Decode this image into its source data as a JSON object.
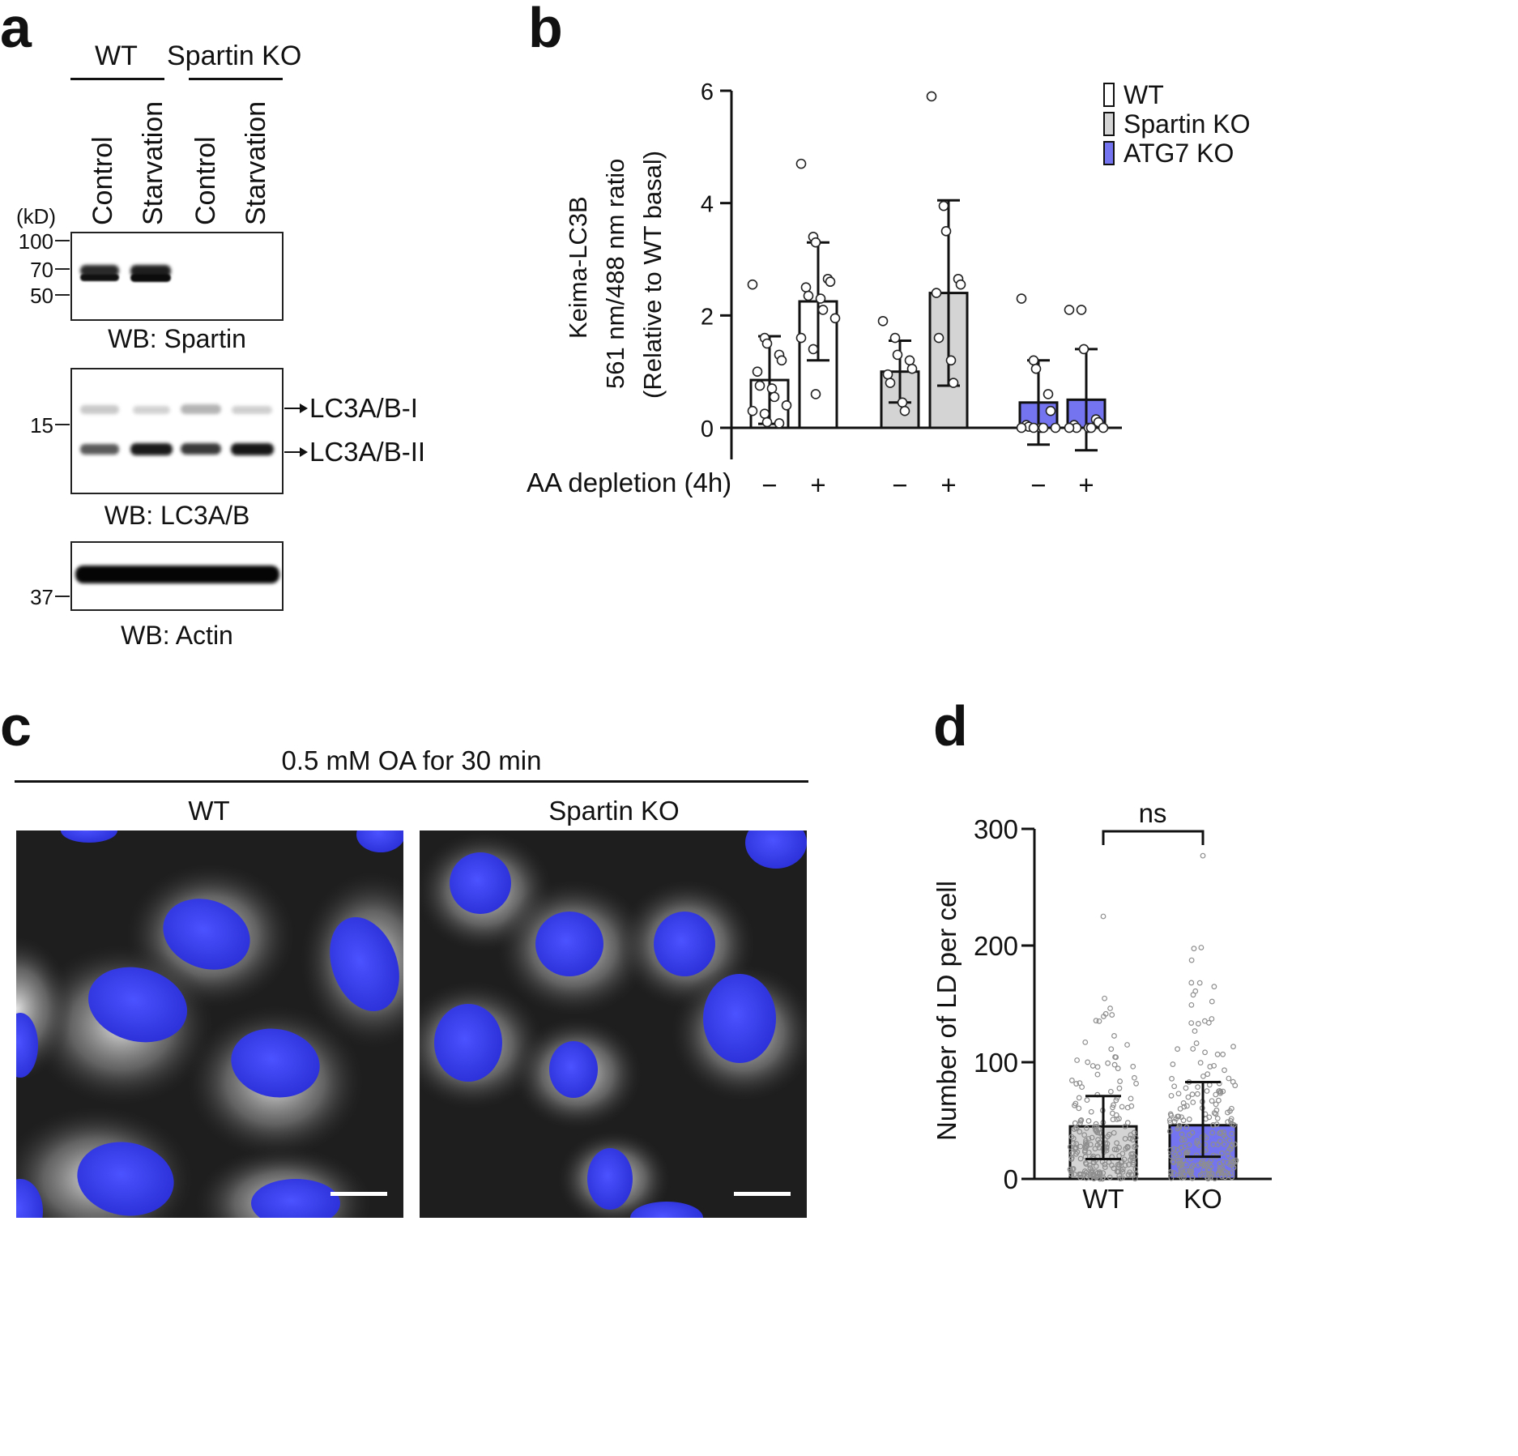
{
  "panel_labels": {
    "a": "a",
    "b": "b",
    "c": "c",
    "d": "d"
  },
  "panel_a": {
    "group_wt": "WT",
    "group_ko": "Spartin KO",
    "lanes": [
      "Control",
      "Starvation",
      "Control",
      "Starvation"
    ],
    "unit": "(kD)",
    "blot1": {
      "markers": [
        "100",
        "70",
        "50"
      ],
      "caption": "WB: Spartin"
    },
    "blot2": {
      "markers": [
        "15"
      ],
      "bands": [
        "LC3A/B-I",
        "LC3A/B-II"
      ],
      "caption": "WB: LC3A/B"
    },
    "blot3": {
      "markers": [
        "37"
      ],
      "caption": "WB: Actin"
    }
  },
  "panel_c": {
    "condition": "0.5 mM OA for 30 min",
    "image_titles": [
      "WT",
      "Spartin KO"
    ]
  },
  "chart_data": [
    {
      "panel": "b",
      "type": "bar",
      "ylabel_lines": [
        "Keima-LC3B",
        "561 nm/488 nm ratio",
        "(Relative to WT basal)"
      ],
      "xlabel": "AA depletion (4h)",
      "categories": [
        "−",
        "+",
        "−",
        "+",
        "−",
        "+"
      ],
      "yticks": [
        "0",
        "2",
        "4",
        "6"
      ],
      "ylim": [
        0,
        6
      ],
      "legend": [
        "WT",
        "Spartin KO",
        "ATG7 KO"
      ],
      "legend_position": "top-right",
      "colors": {
        "WT": "#ffffff",
        "Spartin KO": "#d4d4d4",
        "ATG7 KO": "#7474f0"
      },
      "bars": [
        {
          "group": "WT",
          "aa": "−",
          "mean": 0.85,
          "sd": 0.78,
          "points": [
            2.55,
            1.6,
            1.5,
            1.3,
            1.2,
            1.0,
            0.75,
            0.7,
            0.55,
            0.4,
            0.3,
            0.25,
            0.1,
            0.08
          ]
        },
        {
          "group": "WT",
          "aa": "+",
          "mean": 2.25,
          "sd": 1.05,
          "points": [
            4.7,
            3.4,
            3.3,
            2.65,
            2.6,
            2.5,
            2.35,
            2.3,
            2.1,
            1.95,
            1.6,
            1.4,
            0.6
          ]
        },
        {
          "group": "Spartin KO",
          "aa": "−",
          "mean": 1.0,
          "sd": 0.55,
          "points": [
            1.9,
            1.6,
            1.3,
            1.2,
            1.05,
            0.95,
            0.8,
            0.45,
            0.3
          ]
        },
        {
          "group": "Spartin KO",
          "aa": "+",
          "mean": 2.4,
          "sd": 1.65,
          "points": [
            5.9,
            3.95,
            3.5,
            2.65,
            2.55,
            2.4,
            1.6,
            1.2,
            0.8
          ]
        },
        {
          "group": "ATG7 KO",
          "aa": "−",
          "mean": 0.45,
          "sd": 0.75,
          "points": [
            2.3,
            1.2,
            1.05,
            0.6,
            0.3,
            0.05,
            0.02,
            0,
            0,
            0,
            0,
            0
          ]
        },
        {
          "group": "ATG7 KO",
          "aa": "+",
          "mean": 0.5,
          "sd": 0.9,
          "points": [
            2.1,
            2.1,
            1.4,
            0.15,
            0.1,
            0.05,
            0,
            0,
            0,
            0,
            0
          ]
        }
      ]
    },
    {
      "panel": "d",
      "type": "bar",
      "ylabel": "Number of LD per cell",
      "categories": [
        "WT",
        "KO"
      ],
      "yticks": [
        "0",
        "100",
        "200",
        "300"
      ],
      "ylim": [
        0,
        300
      ],
      "annotation": "ns",
      "colors": {
        "WT": "#d4d4d4",
        "KO": "#7474f0"
      },
      "bars": [
        {
          "name": "WT",
          "mean": 45,
          "err_low": 17,
          "err_high": 71,
          "max": 225
        },
        {
          "name": "KO",
          "mean": 46,
          "err_low": 19,
          "err_high": 83,
          "max": 277
        }
      ]
    }
  ]
}
